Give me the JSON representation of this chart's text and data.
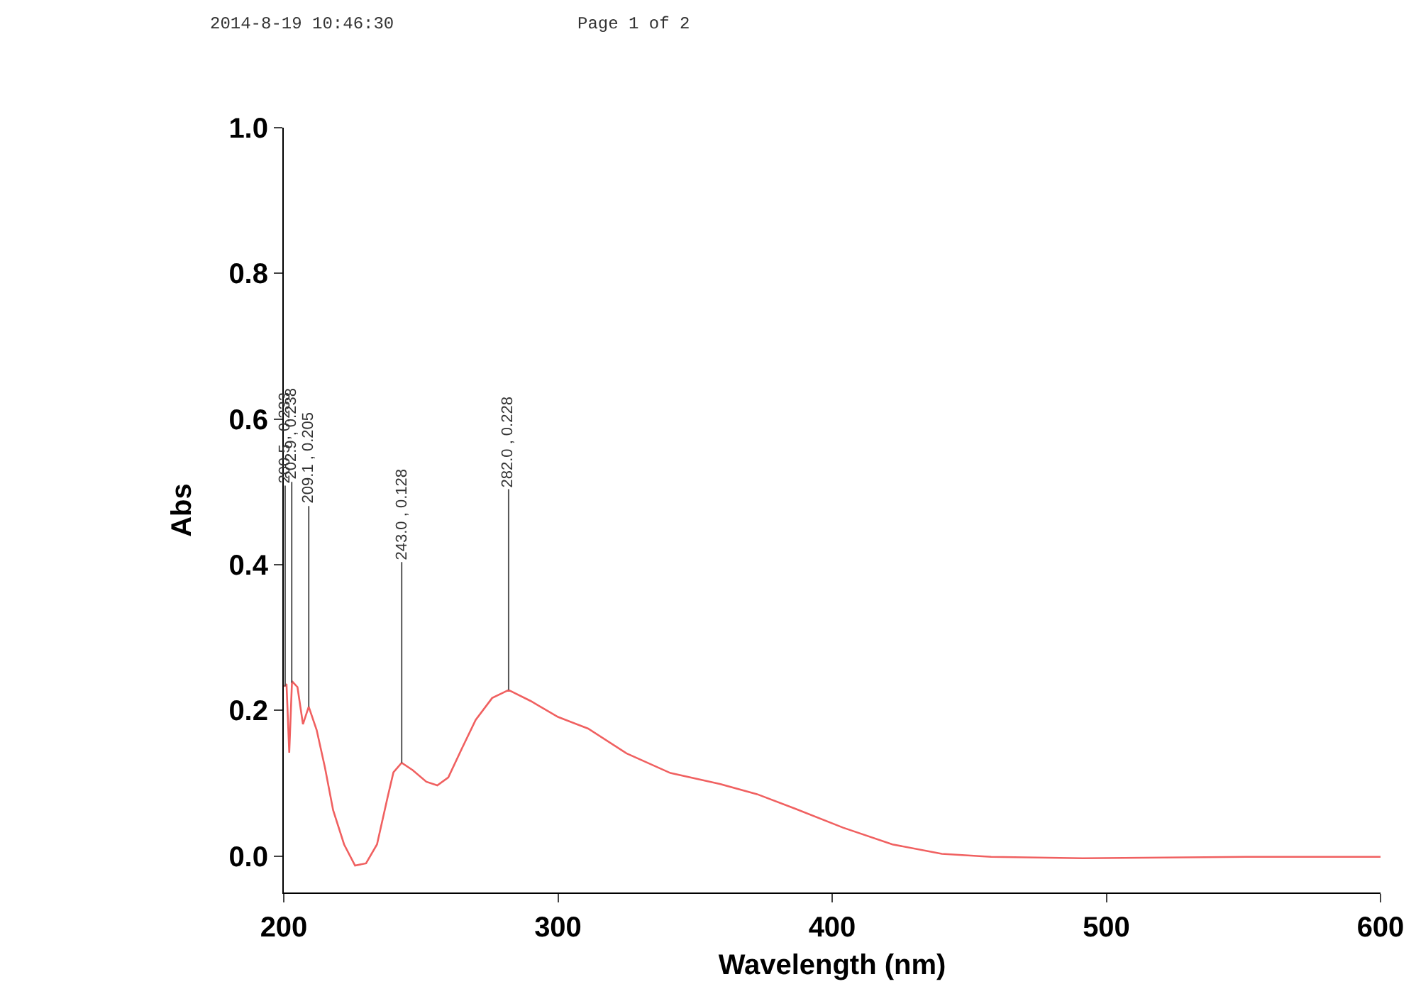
{
  "chart_data": {
    "type": "line",
    "xlabel": "Wavelength (nm)",
    "ylabel": "Abs",
    "x": [
      200,
      201,
      202,
      203,
      205,
      207,
      209.1,
      212,
      215,
      218,
      222,
      226,
      230,
      234,
      238,
      240,
      243,
      247,
      252,
      256,
      260,
      265,
      270,
      276,
      282,
      290,
      300,
      311,
      325,
      341,
      359,
      372.6,
      386.6,
      404,
      422,
      440,
      458,
      491.5,
      551,
      600
    ],
    "series": [
      {
        "color": "#f06060",
        "values": [
          0.233,
          0.236,
          0.142,
          0.24,
          0.232,
          0.181,
          0.205,
          0.173,
          0.122,
          0.063,
          0.016,
          -0.013,
          -0.01,
          0.016,
          0.083,
          0.115,
          0.128,
          0.118,
          0.102,
          0.097,
          0.108,
          0.148,
          0.187,
          0.217,
          0.228,
          0.213,
          0.191,
          0.175,
          0.141,
          0.114,
          0.099,
          0.085,
          0.065,
          0.039,
          0.016,
          0.003,
          -0.001,
          -0.003,
          -0.001,
          -0.001
        ]
      }
    ],
    "xlim": [
      200,
      600
    ],
    "xticks": [
      200,
      300,
      400,
      500,
      600
    ],
    "ylim": [
      -0.05,
      1.0
    ],
    "yticks": [
      {
        "value": 0,
        "label": "0.0"
      },
      {
        "value": 0.2,
        "label": "0.2"
      },
      {
        "value": 0.4,
        "label": "0.4"
      },
      {
        "value": 0.6,
        "label": "0.6"
      },
      {
        "value": 0.8,
        "label": "0.8"
      },
      {
        "value": 1,
        "label": "1.0"
      }
    ],
    "grid": false,
    "annotations": [
      "2014-8-19 10:46:30",
      "Page 1 of 2",
      {
        "text": "200.5 , 0.233",
        "x": 200.5,
        "y": 0.233
      },
      {
        "text": "202.9 , 0.238",
        "x": 202.9,
        "y": 0.238
      },
      {
        "text": "209.1 , 0.205",
        "x": 209.1,
        "y": 0.205
      },
      {
        "text": "243.0 , 0.128",
        "x": 243.0,
        "y": 0.128
      },
      {
        "text": "282.0 , 0.228",
        "x": 282.0,
        "y": 0.228
      }
    ]
  }
}
